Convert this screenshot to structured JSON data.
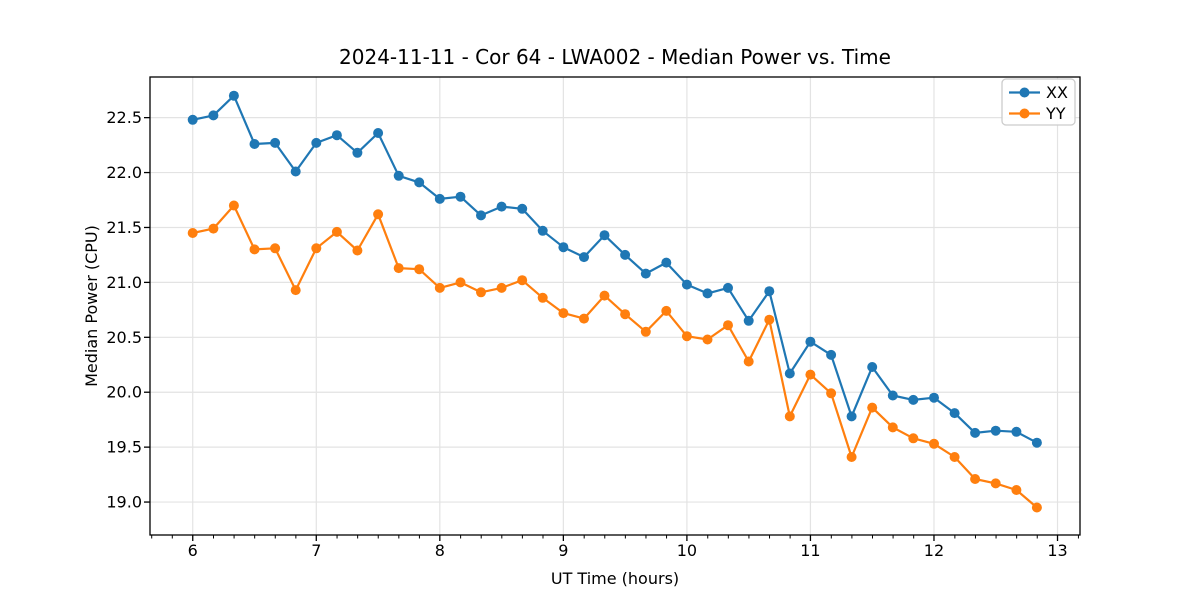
{
  "chart_data": {
    "type": "line",
    "title": "2024-11-11 - Cor 64 - LWA002 - Median Power vs. Time",
    "xlabel": "UT Time (hours)",
    "ylabel": "Median Power (CPU)",
    "xlim": [
      5.654,
      13.182
    ],
    "ylim": [
      18.7,
      22.87
    ],
    "xticks": [
      6,
      7,
      8,
      9,
      10,
      11,
      12,
      13
    ],
    "yticks": [
      19.0,
      19.5,
      20.0,
      20.5,
      21.0,
      21.5,
      22.0,
      22.5
    ],
    "x_minor_interval": 0.1667,
    "grid": true,
    "legend_position": "upper right",
    "grid_color": "#e3e3e3",
    "x": [
      6.0,
      6.167,
      6.333,
      6.5,
      6.667,
      6.833,
      7.0,
      7.167,
      7.333,
      7.5,
      7.667,
      7.833,
      8.0,
      8.167,
      8.333,
      8.5,
      8.667,
      8.833,
      9.0,
      9.167,
      9.333,
      9.5,
      9.667,
      9.833,
      10.0,
      10.167,
      10.333,
      10.5,
      10.667,
      10.833,
      11.0,
      11.167,
      11.333,
      11.5,
      11.667,
      11.833,
      12.0,
      12.167,
      12.333,
      12.5,
      12.667,
      12.833
    ],
    "series": [
      {
        "name": "XX",
        "color": "#1f77b4",
        "marker": "circle",
        "values": [
          22.48,
          22.52,
          22.7,
          22.26,
          22.27,
          22.01,
          22.27,
          22.34,
          22.18,
          22.36,
          21.97,
          21.91,
          21.76,
          21.78,
          21.61,
          21.69,
          21.67,
          21.47,
          21.32,
          21.23,
          21.43,
          21.25,
          21.08,
          21.18,
          20.98,
          20.9,
          20.95,
          20.65,
          20.92,
          20.17,
          20.46,
          20.34,
          19.78,
          20.23,
          19.97,
          19.93,
          19.95,
          19.81,
          19.63,
          19.65,
          19.64,
          19.54
        ]
      },
      {
        "name": "YY",
        "color": "#ff7f0e",
        "marker": "circle",
        "values": [
          21.45,
          21.49,
          21.7,
          21.3,
          21.31,
          20.93,
          21.31,
          21.46,
          21.29,
          21.62,
          21.13,
          21.12,
          20.95,
          21.0,
          20.91,
          20.95,
          21.02,
          20.86,
          20.72,
          20.67,
          20.88,
          20.71,
          20.55,
          20.74,
          20.51,
          20.48,
          20.61,
          20.28,
          20.66,
          19.78,
          20.16,
          19.99,
          19.41,
          19.86,
          19.68,
          19.58,
          19.53,
          19.41,
          19.21,
          19.17,
          19.11,
          18.95
        ]
      }
    ]
  }
}
